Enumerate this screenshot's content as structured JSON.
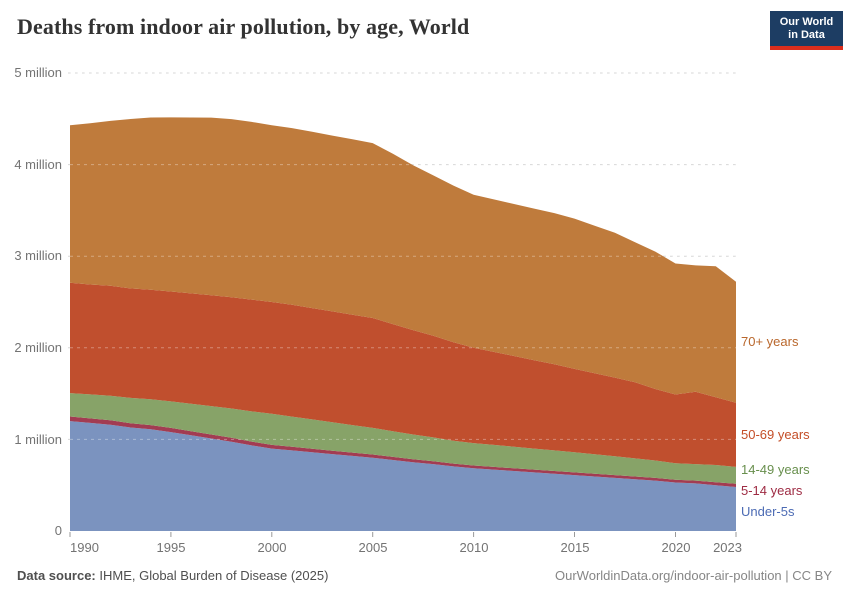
{
  "header": {
    "title": "Deaths from indoor air pollution, by age, World",
    "logo_line1": "Our World",
    "logo_line2": "in Data",
    "logo_bg": "#1d3d63",
    "logo_bar": "#dc2e1c"
  },
  "footer": {
    "source_label": "Data source:",
    "source_value": " IHME, Global Burden of Disease (2025)",
    "link": "OurWorldinData.org/indoor-air-pollution | CC BY"
  },
  "chart_data": {
    "type": "area",
    "stacked": true,
    "title": "Deaths from indoor air pollution, by age, World",
    "units": "deaths per year",
    "ylim": [
      0,
      5
    ],
    "grid": "dashed horizontal",
    "legend_position": "right of areas, colored text labels",
    "x": [
      1990,
      1991,
      1992,
      1993,
      1994,
      1995,
      1996,
      1997,
      1998,
      1999,
      2000,
      2001,
      2002,
      2003,
      2004,
      2005,
      2006,
      2007,
      2008,
      2009,
      2010,
      2011,
      2012,
      2013,
      2014,
      2015,
      2016,
      2017,
      2018,
      2019,
      2020,
      2021,
      2022,
      2023
    ],
    "x_ticks": [
      1990,
      1995,
      2000,
      2005,
      2010,
      2015,
      2020,
      2023
    ],
    "y_ticks": [
      {
        "value": 0,
        "label": "0"
      },
      {
        "value": 1,
        "label": "1 million"
      },
      {
        "value": 2,
        "label": "2 million"
      },
      {
        "value": 3,
        "label": "3 million"
      },
      {
        "value": 4,
        "label": "4 million"
      },
      {
        "value": 5,
        "label": "5 million"
      }
    ],
    "value_unit": "millions of deaths",
    "series": [
      {
        "name": "Under-5s",
        "color": "#7b93bf",
        "label_color": "#4c6bb4",
        "values": [
          1.2,
          1.18,
          1.16,
          1.13,
          1.11,
          1.08,
          1.045,
          1.01,
          0.975,
          0.935,
          0.9,
          0.88,
          0.86,
          0.84,
          0.82,
          0.8,
          0.775,
          0.75,
          0.73,
          0.705,
          0.685,
          0.67,
          0.655,
          0.64,
          0.625,
          0.61,
          0.595,
          0.58,
          0.565,
          0.55,
          0.53,
          0.52,
          0.5,
          0.48
        ]
      },
      {
        "name": "5-14 years",
        "color": "#a23c52",
        "label_color": "#9e2b43",
        "values": [
          0.05,
          0.049,
          0.048,
          0.047,
          0.046,
          0.045,
          0.044,
          0.043,
          0.042,
          0.041,
          0.04,
          0.039,
          0.038,
          0.037,
          0.036,
          0.035,
          0.034,
          0.033,
          0.032,
          0.031,
          0.03,
          0.03,
          0.03,
          0.03,
          0.03,
          0.03,
          0.03,
          0.03,
          0.03,
          0.03,
          0.03,
          0.03,
          0.032,
          0.035
        ]
      },
      {
        "name": "14-49 years",
        "color": "#87a368",
        "label_color": "#688f4d",
        "values": [
          0.255,
          0.262,
          0.269,
          0.276,
          0.283,
          0.29,
          0.3,
          0.31,
          0.32,
          0.33,
          0.34,
          0.33,
          0.32,
          0.31,
          0.3,
          0.29,
          0.28,
          0.27,
          0.26,
          0.25,
          0.245,
          0.24,
          0.235,
          0.23,
          0.225,
          0.22,
          0.212,
          0.205,
          0.198,
          0.19,
          0.18,
          0.18,
          0.188,
          0.185
        ]
      },
      {
        "name": "50-69 years",
        "color": "#c04f2e",
        "label_color": "#c44e28",
        "values": [
          1.205,
          1.2,
          1.2,
          1.195,
          1.195,
          1.2,
          1.205,
          1.21,
          1.215,
          1.22,
          1.22,
          1.22,
          1.215,
          1.21,
          1.205,
          1.2,
          1.17,
          1.14,
          1.11,
          1.075,
          1.04,
          1.015,
          0.99,
          0.965,
          0.94,
          0.91,
          0.885,
          0.86,
          0.83,
          0.78,
          0.75,
          0.79,
          0.74,
          0.7
        ]
      },
      {
        "name": "70+ years",
        "color": "#bf7b3c",
        "label_color": "#b9672c",
        "values": [
          1.72,
          1.76,
          1.8,
          1.85,
          1.88,
          1.9,
          1.92,
          1.94,
          1.945,
          1.94,
          1.93,
          1.93,
          1.925,
          1.92,
          1.915,
          1.91,
          1.86,
          1.8,
          1.75,
          1.71,
          1.67,
          1.665,
          1.66,
          1.655,
          1.65,
          1.64,
          1.61,
          1.58,
          1.53,
          1.5,
          1.43,
          1.38,
          1.43,
          1.32
        ]
      }
    ]
  }
}
